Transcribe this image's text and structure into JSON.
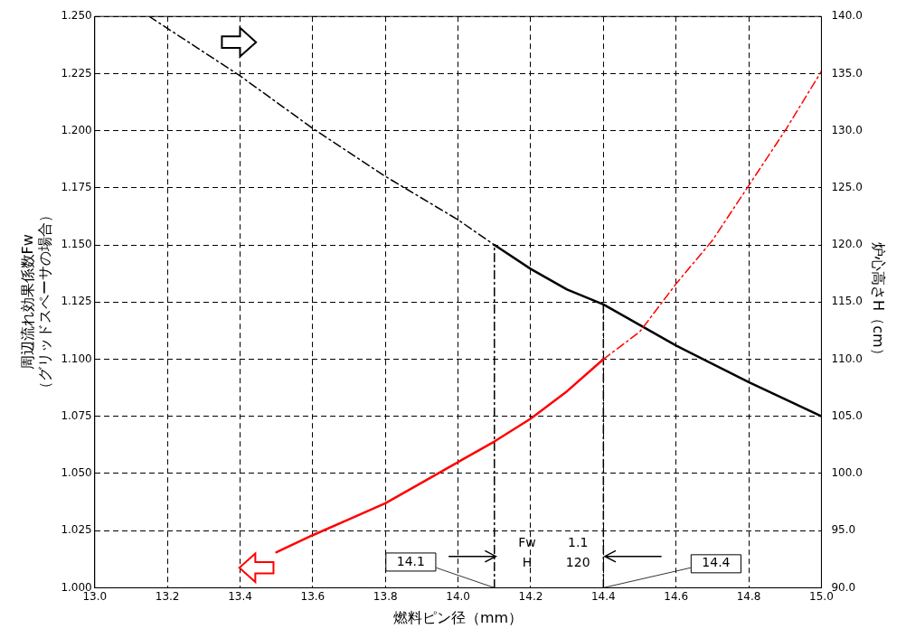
{
  "chart_data": {
    "type": "line",
    "xlabel": "燃料ピン径（mm）",
    "ylabel": "周辺流れ効果係数Fw\n（グリッドスペーサの場合）",
    "y2label": "炉心高さH（cm）",
    "series": [
      {
        "color": "#ff0000",
        "line_style": "solid",
        "x": [
          13.5,
          13.6,
          13.7,
          13.8,
          13.9,
          14.0,
          14.1,
          14.2,
          14.3,
          14.4
        ],
        "values": [
          1.0155,
          1.023,
          1.03,
          1.037,
          1.046,
          1.055,
          1.064,
          1.074,
          1.086,
          1.1
        ]
      },
      {
        "color": "#ff0000",
        "line_style": "dashed",
        "x": [
          14.4,
          14.5,
          14.6,
          14.7,
          14.8,
          14.9,
          15.0
        ],
        "values": [
          1.1,
          1.112,
          1.133,
          1.152,
          1.176,
          1.2,
          1.226
        ]
      },
      {
        "color": "#000000",
        "line_style": "dashed",
        "axis": "y2",
        "x": [
          13.15,
          13.4,
          13.6,
          13.8,
          14.0,
          14.1
        ],
        "values": [
          140.0,
          134.8,
          130.2,
          126.0,
          122.2,
          120.0
        ]
      },
      {
        "color": "#000000",
        "line_style": "solid",
        "axis": "y2",
        "x": [
          14.1,
          14.2,
          14.3,
          14.4,
          14.6,
          14.8,
          15.0
        ],
        "values": [
          120.0,
          117.9,
          116.1,
          114.8,
          111.2,
          108.0,
          105.0
        ]
      },
      {
        "color": "#000000",
        "line_style": "dashed",
        "x": [
          14.1,
          14.1
        ],
        "values": [
          1.0,
          1.15
        ]
      },
      {
        "color": "#000000",
        "line_style": "dashed",
        "x": [
          14.4,
          14.4
        ],
        "values": [
          1.0,
          1.125
        ]
      }
    ],
    "xlim": [
      13.0,
      15.0
    ],
    "xticks": [
      {
        "value": 13.0,
        "label": "13.0"
      },
      {
        "value": 13.2,
        "label": "13.2"
      },
      {
        "value": 13.4,
        "label": "13.4"
      },
      {
        "value": 13.6,
        "label": "13.6"
      },
      {
        "value": 13.8,
        "label": "13.8"
      },
      {
        "value": 14.0,
        "label": "14.0"
      },
      {
        "value": 14.2,
        "label": "14.2"
      },
      {
        "value": 14.4,
        "label": "14.4"
      },
      {
        "value": 14.6,
        "label": "14.6"
      },
      {
        "value": 14.8,
        "label": "14.8"
      },
      {
        "value": 15.0,
        "label": "15.0"
      }
    ],
    "ylim": [
      1.0,
      1.25
    ],
    "yticks": [
      {
        "value": 1.0,
        "label": "1.000"
      },
      {
        "value": 1.025,
        "label": "1.025"
      },
      {
        "value": 1.05,
        "label": "1.050"
      },
      {
        "value": 1.075,
        "label": "1.075"
      },
      {
        "value": 1.1,
        "label": "1.100"
      },
      {
        "value": 1.125,
        "label": "1.125"
      },
      {
        "value": 1.15,
        "label": "1.150"
      },
      {
        "value": 1.175,
        "label": "1.175"
      },
      {
        "value": 1.2,
        "label": "1.200"
      },
      {
        "value": 1.225,
        "label": "1.225"
      },
      {
        "value": 1.25,
        "label": "1.250"
      }
    ],
    "y2lim": [
      90,
      140
    ],
    "y2ticks": [
      {
        "value": 90,
        "label": "90.0"
      },
      {
        "value": 95,
        "label": "95.0"
      },
      {
        "value": 100,
        "label": "100.0"
      },
      {
        "value": 105,
        "label": "105.0"
      },
      {
        "value": 110,
        "label": "110.0"
      },
      {
        "value": 115,
        "label": "115.0"
      },
      {
        "value": 120,
        "label": "120.0"
      },
      {
        "value": 125,
        "label": "125.0"
      },
      {
        "value": 130,
        "label": "130.0"
      },
      {
        "value": 135,
        "label": "135.0"
      },
      {
        "value": 140,
        "label": "140.0"
      }
    ],
    "annotations": [
      {
        "text": "14.1",
        "x": 14.1,
        "y": 1.0
      },
      {
        "text": "14.4",
        "x": 14.4,
        "y": 1.0
      },
      "Fw",
      "1.1",
      "H",
      "120"
    ],
    "grid": true,
    "legend": false,
    "marker": "none"
  }
}
